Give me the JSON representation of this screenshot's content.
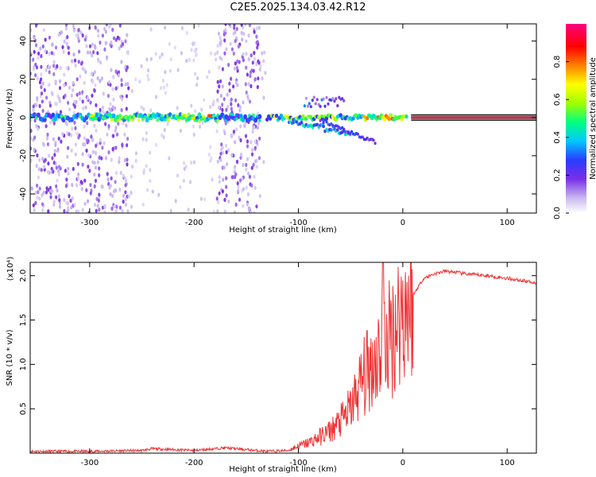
{
  "page": {
    "title": "C2E5.2025.134.03.42.R12"
  },
  "chart_data": [
    {
      "type": "heatmap",
      "xlabel": "Height of straight line (km)",
      "ylabel": "Frequency (Hz)",
      "xlim": [
        -357,
        128
      ],
      "ylim": [
        -50,
        49
      ],
      "xticks": [
        -300,
        -200,
        -100,
        0,
        100
      ],
      "yticks": [
        -40,
        -20,
        0,
        20,
        40
      ],
      "colorbar": {
        "label": "Normalized spectral amplitude",
        "range": [
          0,
          1
        ],
        "ticks": [
          0.0,
          0.2,
          0.4,
          0.6,
          0.8
        ],
        "colormap": [
          "#ffffff",
          "#c9b8f0",
          "#7a2ee8",
          "#2a3cff",
          "#00c8ff",
          "#00ff80",
          "#a0ff00",
          "#ffff00",
          "#ff8000",
          "#ff0000",
          "#ff0080"
        ]
      },
      "features": {
        "carrier_band": {
          "x_range": [
            -357,
            128
          ],
          "freq": 0,
          "level": 0.9
        },
        "fading_region_freq_spread": 48,
        "noisy_columns_x": [
          [
            -357,
            -262
          ],
          [
            -178,
            -136
          ]
        ],
        "breakup_region_x": [
          -120,
          -20
        ]
      }
    },
    {
      "type": "line",
      "xlabel": "Height of straight line (km)",
      "ylabel": "SNR (10 * v/v)",
      "y_scale_label": "(x10⁴)",
      "xlim": [
        -357,
        128
      ],
      "ylim": [
        0,
        2.15
      ],
      "xticks": [
        -300,
        -200,
        -100,
        0,
        100
      ],
      "yticks": [
        0.5,
        1.0,
        1.5,
        2.0
      ],
      "series": [
        {
          "color": "#ee3333",
          "x": [
            -357,
            -300,
            -250,
            -240,
            -200,
            -170,
            -130,
            -110,
            -100,
            -90,
            -80,
            -70,
            -60,
            -50,
            -45,
            -40,
            -35,
            -30,
            -25,
            -20,
            -15,
            -10,
            -5,
            0,
            5,
            10,
            15,
            20,
            30,
            40,
            50,
            60,
            80,
            100,
            128
          ],
          "y": [
            0.02,
            0.02,
            0.03,
            0.05,
            0.03,
            0.06,
            0.02,
            0.03,
            0.08,
            0.12,
            0.18,
            0.25,
            0.35,
            0.5,
            0.65,
            0.8,
            0.9,
            1.0,
            1.1,
            1.2,
            1.25,
            1.35,
            1.5,
            1.6,
            1.68,
            1.78,
            1.88,
            1.97,
            2.02,
            2.05,
            2.04,
            2.02,
            2.0,
            1.97,
            1.92
          ]
        }
      ]
    }
  ]
}
